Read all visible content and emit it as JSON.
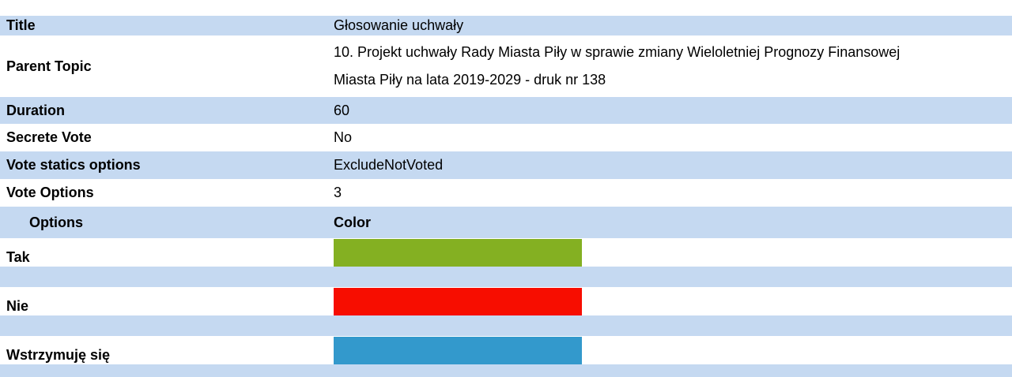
{
  "fields": [
    {
      "label": "Title",
      "value": "Głosowanie uchwały"
    },
    {
      "label": "Parent Topic",
      "value": "10. Projekt uchwały Rady Miasta Piły w sprawie zmiany Wieloletniej Prognozy Finansowej Miasta Piły na lata 2019-2029 - druk nr 138"
    },
    {
      "label": "Duration",
      "value": "60"
    },
    {
      "label": "Secrete Vote",
      "value": "No"
    },
    {
      "label": "Vote statics options",
      "value": "ExcludeNotVoted"
    },
    {
      "label": "Vote Options",
      "value": "3"
    }
  ],
  "options_header": {
    "name": "Options",
    "color": "Color"
  },
  "options": [
    {
      "name": "Tak",
      "color": "#84b022"
    },
    {
      "name": "Nie",
      "color": "#f70d00"
    },
    {
      "name": "Wstrzymuję się",
      "color": "#3399cc"
    }
  ]
}
